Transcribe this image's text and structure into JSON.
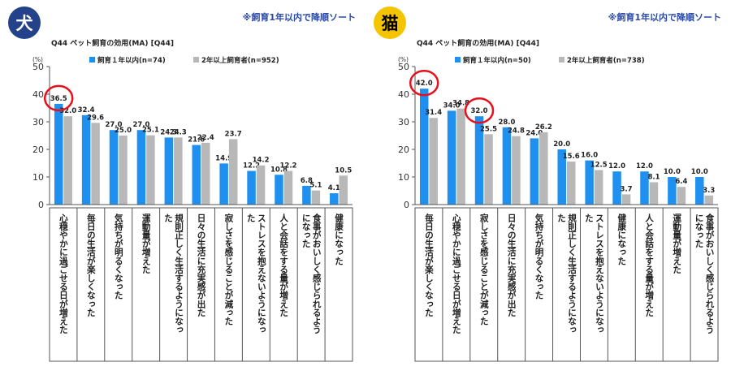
{
  "colors": {
    "within1yr": "#1f8ff0",
    "over2yr": "#b8b8b8",
    "circle": "#e8101c",
    "note": "#2a4aa8"
  },
  "dog": {
    "badge": "犬",
    "note": "※飼育1年以内で降順ソート",
    "subtitle": "Q44 ペット飼育の効用(MA) [Q44]",
    "chart_data": {
      "type": "bar",
      "unit_label": "(%)",
      "ylim": [
        0,
        50
      ],
      "yticks": [
        "0",
        "10",
        "20",
        "30",
        "40",
        "50"
      ],
      "categories": [
        "心穏やかに過ごせる日が増えた",
        "毎日の生活が楽しくなった",
        "気持ちが明るくなった",
        "運動量が増えた",
        "規則正しく生活するようになった",
        "日々の生活に充実感が出た",
        "寂しさを感じることが減った",
        "ストレスを抱えないようになった",
        "人と会話をする量が増えた",
        "食事がおいしく感じられるようになった",
        "健康になった"
      ],
      "series": [
        {
          "name": "飼育１年以内(n=74)",
          "values": [
            36.5,
            32.4,
            27.0,
            27.0,
            24.3,
            21.6,
            14.9,
            12.2,
            10.8,
            6.8,
            4.1
          ]
        },
        {
          "name": "2年以上飼育者(n=952)",
          "values": [
            32.0,
            29.6,
            25.0,
            25.1,
            24.3,
            22.4,
            23.7,
            14.2,
            12.2,
            5.1,
            10.5
          ]
        }
      ],
      "value_labels": [
        [
          "36.5",
          "32.4",
          "27.0",
          "27.0",
          "24.3",
          "21.6",
          "14.9",
          "12.2",
          "10.8",
          "6.8",
          "4.1"
        ],
        [
          "32.0",
          "29.6",
          "25.0",
          "25.1",
          "24.3",
          "22.4",
          "23.7",
          "14.2",
          "12.2",
          "5.1",
          "10.5"
        ]
      ],
      "highlighted": [
        0
      ]
    }
  },
  "cat": {
    "badge": "猫",
    "note": "※飼育1年以内で降順ソート",
    "subtitle": "Q44 ペット飼育の効用(MA) [Q44]",
    "chart_data": {
      "type": "bar",
      "unit_label": "(%)",
      "ylim": [
        0,
        50
      ],
      "yticks": [
        "0",
        "10",
        "20",
        "30",
        "40",
        "50"
      ],
      "categories": [
        "毎日の生活が楽しくなった",
        "心穏やかに過ごせる日が増えた",
        "寂しさを感じることが減った",
        "日々の生活に充実感が出た",
        "気持ちが明るくなった",
        "規則正しく生活するようになった",
        "ストレスを抱えないようになった",
        "健康になった",
        "人と会話をする量が増えた",
        "運動量が増えた",
        "食事がおいしく感じられるようになった"
      ],
      "series": [
        {
          "name": "飼育１年以内(n=50)",
          "values": [
            42.0,
            34.0,
            32.0,
            28.0,
            24.0,
            20.0,
            16.0,
            12.0,
            12.0,
            10.0,
            10.0
          ]
        },
        {
          "name": "2年以上飼育者(n=738)",
          "values": [
            31.4,
            34.8,
            25.5,
            24.8,
            26.2,
            15.6,
            12.5,
            3.7,
            8.1,
            6.4,
            3.3
          ]
        }
      ],
      "value_labels": [
        [
          "42.0",
          "34.0",
          "32.0",
          "28.0",
          "24.0",
          "20.0",
          "16.0",
          "12.0",
          "12.0",
          "10.0",
          "10.0"
        ],
        [
          "31.4",
          "34.8",
          "25.5",
          "24.8",
          "26.2",
          "15.6",
          "12.5",
          "3.7",
          "8.1",
          "6.4",
          "3.3"
        ]
      ],
      "highlighted": [
        0,
        2
      ]
    }
  }
}
